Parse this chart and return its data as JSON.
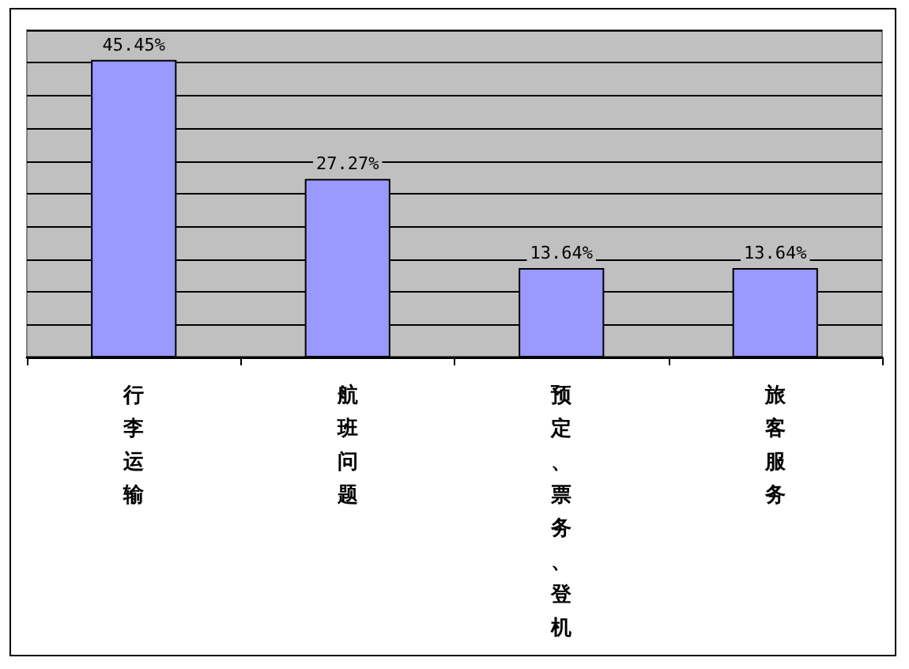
{
  "chart_data": {
    "type": "bar",
    "categories": [
      "行李运输",
      "航班问题",
      "预定、票务、登机",
      "旅客服务"
    ],
    "values": [
      45.45,
      27.27,
      13.64,
      13.64
    ],
    "value_labels": [
      "45.45%",
      "27.27%",
      "13.64%",
      "13.64%"
    ],
    "color": "#9999ff",
    "ylim": [
      0,
      50
    ],
    "yticks": [
      {
        "value": 0,
        "label": null
      },
      {
        "value": 5,
        "label": null
      },
      {
        "value": 10,
        "label": null
      },
      {
        "value": 15,
        "label": null
      },
      {
        "value": 20,
        "label": null
      },
      {
        "value": 25,
        "label": null
      },
      {
        "value": 30,
        "label": null
      },
      {
        "value": 35,
        "label": null
      },
      {
        "value": 40,
        "label": null
      },
      {
        "value": 45,
        "label": null
      },
      {
        "value": 50,
        "label": null
      }
    ],
    "grid": "y",
    "tick_labels": "x"
  }
}
